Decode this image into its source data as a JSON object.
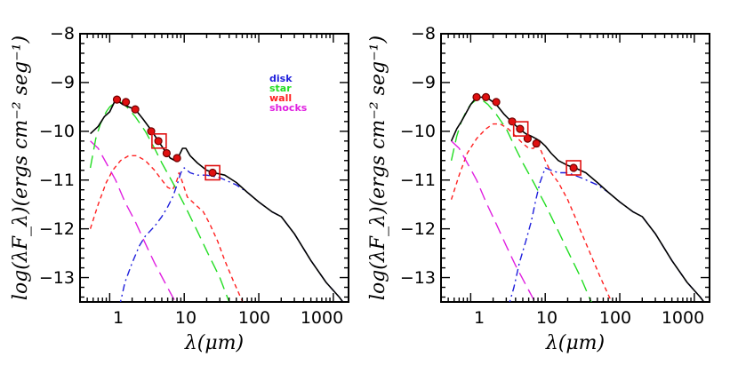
{
  "figure": {
    "ylabel": "log(λF_λ)(ergs cm⁻² seg⁻¹)",
    "xlabel": "λ(μm)"
  },
  "legend": [
    {
      "label": "disk",
      "color": "#1f1fdc"
    },
    {
      "label": "star",
      "color": "#22dd22"
    },
    {
      "label": "wall",
      "color": "#ff2020"
    },
    {
      "label": "shocks",
      "color": "#e020e0"
    }
  ],
  "chart_data": [
    {
      "type": "line",
      "panel": "left",
      "xscale": "log",
      "xlim": [
        0.4,
        1600
      ],
      "ylim": [
        -13.5,
        -8
      ],
      "xticks": [
        {
          "v": 1,
          "label": "1"
        },
        {
          "v": 10,
          "label": "10"
        },
        {
          "v": 100,
          "label": "100"
        },
        {
          "v": 1000,
          "label": "1000"
        }
      ],
      "yticks": [
        {
          "v": -8,
          "label": "−8"
        },
        {
          "v": -9,
          "label": "−9"
        },
        {
          "v": -10,
          "label": "−10"
        },
        {
          "v": -11,
          "label": "−11"
        },
        {
          "v": -12,
          "label": "−12"
        },
        {
          "v": -13,
          "label": "−13"
        }
      ],
      "xlabel": "λ(μm)",
      "ylabel": "log(λF_λ)(ergs cm⁻² seg⁻¹)",
      "legend_position": "top-right",
      "series": [
        {
          "name": "total",
          "color": "#000000",
          "style": "solid",
          "points": [
            [
              0.55,
              -10.05
            ],
            [
              0.7,
              -9.9
            ],
            [
              0.85,
              -9.7
            ],
            [
              1.0,
              -9.6
            ],
            [
              1.2,
              -9.35
            ],
            [
              1.5,
              -9.45
            ],
            [
              1.8,
              -9.5
            ],
            [
              2.2,
              -9.55
            ],
            [
              2.8,
              -9.75
            ],
            [
              3.5,
              -9.95
            ],
            [
              4.5,
              -10.2
            ],
            [
              5.5,
              -10.4
            ],
            [
              6.5,
              -10.55
            ],
            [
              7.5,
              -10.6
            ],
            [
              8.5,
              -10.5
            ],
            [
              9.5,
              -10.35
            ],
            [
              10.5,
              -10.35
            ],
            [
              12,
              -10.5
            ],
            [
              15,
              -10.65
            ],
            [
              20,
              -10.8
            ],
            [
              25,
              -10.85
            ],
            [
              35,
              -10.9
            ],
            [
              50,
              -11.05
            ],
            [
              70,
              -11.25
            ],
            [
              100,
              -11.45
            ],
            [
              150,
              -11.65
            ],
            [
              200,
              -11.75
            ],
            [
              300,
              -12.1
            ],
            [
              500,
              -12.65
            ],
            [
              800,
              -13.1
            ],
            [
              1200,
              -13.4
            ],
            [
              1500,
              -13.6
            ]
          ]
        },
        {
          "name": "disk",
          "color": "#1f1fdc",
          "style": "dash-dot",
          "points": [
            [
              1.35,
              -13.6
            ],
            [
              1.6,
              -13.1
            ],
            [
              2,
              -12.7
            ],
            [
              2.5,
              -12.35
            ],
            [
              3,
              -12.15
            ],
            [
              4,
              -11.95
            ],
            [
              5,
              -11.75
            ],
            [
              6,
              -11.55
            ],
            [
              7,
              -11.35
            ],
            [
              8,
              -11.1
            ],
            [
              9,
              -10.85
            ],
            [
              10,
              -10.75
            ],
            [
              12,
              -10.85
            ],
            [
              15,
              -10.9
            ],
            [
              20,
              -10.9
            ],
            [
              30,
              -10.95
            ],
            [
              50,
              -11.1
            ],
            [
              70,
              -11.25
            ],
            [
              100,
              -11.45
            ],
            [
              150,
              -11.65
            ],
            [
              200,
              -11.75
            ],
            [
              300,
              -12.1
            ],
            [
              500,
              -12.65
            ],
            [
              800,
              -13.1
            ],
            [
              1200,
              -13.4
            ],
            [
              1500,
              -13.6
            ]
          ]
        },
        {
          "name": "star",
          "color": "#22dd22",
          "style": "long-dash",
          "points": [
            [
              0.55,
              -10.75
            ],
            [
              0.65,
              -10.15
            ],
            [
              0.75,
              -9.85
            ],
            [
              0.9,
              -9.6
            ],
            [
              1.0,
              -9.5
            ],
            [
              1.2,
              -9.4
            ],
            [
              1.4,
              -9.4
            ],
            [
              1.7,
              -9.5
            ],
            [
              2.2,
              -9.7
            ],
            [
              3,
              -10.0
            ],
            [
              4,
              -10.35
            ],
            [
              5,
              -10.65
            ],
            [
              7,
              -11.05
            ],
            [
              10,
              -11.5
            ],
            [
              15,
              -12.05
            ],
            [
              20,
              -12.45
            ],
            [
              30,
              -13.0
            ],
            [
              40,
              -13.5
            ],
            [
              45,
              -13.6
            ]
          ]
        },
        {
          "name": "wall",
          "color": "#ff2020",
          "style": "short-dash",
          "points": [
            [
              0.55,
              -12.0
            ],
            [
              0.7,
              -11.5
            ],
            [
              0.9,
              -11.05
            ],
            [
              1.1,
              -10.8
            ],
            [
              1.4,
              -10.6
            ],
            [
              1.8,
              -10.5
            ],
            [
              2.3,
              -10.5
            ],
            [
              3,
              -10.6
            ],
            [
              4,
              -10.8
            ],
            [
              5,
              -11.0
            ],
            [
              6,
              -11.15
            ],
            [
              7,
              -11.2
            ],
            [
              8,
              -11.0
            ],
            [
              8.5,
              -10.85
            ],
            [
              9.5,
              -11.05
            ],
            [
              11,
              -11.35
            ],
            [
              14,
              -11.5
            ],
            [
              18,
              -11.65
            ],
            [
              22,
              -11.9
            ],
            [
              28,
              -12.25
            ],
            [
              35,
              -12.65
            ],
            [
              45,
              -13.05
            ],
            [
              55,
              -13.35
            ],
            [
              65,
              -13.6
            ]
          ]
        },
        {
          "name": "shocks",
          "color": "#e020e0",
          "style": "long-dash",
          "points": [
            [
              0.55,
              -10.2
            ],
            [
              0.7,
              -10.35
            ],
            [
              0.9,
              -10.65
            ],
            [
              1.2,
              -11.0
            ],
            [
              1.6,
              -11.45
            ],
            [
              2.2,
              -11.85
            ],
            [
              3,
              -12.3
            ],
            [
              4,
              -12.7
            ],
            [
              5.5,
              -13.1
            ],
            [
              7,
              -13.4
            ],
            [
              8.5,
              -13.6
            ]
          ]
        }
      ],
      "observed": [
        [
          1.25,
          -9.35
        ],
        [
          1.65,
          -9.4
        ],
        [
          2.2,
          -9.55
        ],
        [
          3.6,
          -10.0
        ],
        [
          4.5,
          -10.2
        ],
        [
          5.8,
          -10.45
        ],
        [
          8.0,
          -10.55
        ],
        [
          24,
          -10.85
        ]
      ],
      "marked": [
        [
          4.6,
          -10.2
        ],
        [
          24,
          -10.85
        ]
      ]
    },
    {
      "type": "line",
      "panel": "right",
      "xscale": "log",
      "xlim": [
        0.4,
        1600
      ],
      "ylim": [
        -13.5,
        -8
      ],
      "xticks": [
        {
          "v": 1,
          "label": "1"
        },
        {
          "v": 10,
          "label": "10"
        },
        {
          "v": 100,
          "label": "100"
        },
        {
          "v": 1000,
          "label": "1000"
        }
      ],
      "yticks": [
        {
          "v": -8,
          "label": "−8"
        },
        {
          "v": -9,
          "label": "−9"
        },
        {
          "v": -10,
          "label": "−10"
        },
        {
          "v": -11,
          "label": "−11"
        },
        {
          "v": -12,
          "label": "−12"
        },
        {
          "v": -13,
          "label": "−13"
        }
      ],
      "xlabel": "λ(μm)",
      "ylabel": "log(λF_λ)(ergs cm⁻² seg⁻¹)",
      "series": [
        {
          "name": "total",
          "color": "#000000",
          "style": "solid",
          "points": [
            [
              0.55,
              -10.2
            ],
            [
              0.65,
              -9.95
            ],
            [
              0.75,
              -9.8
            ],
            [
              0.85,
              -9.65
            ],
            [
              1.0,
              -9.45
            ],
            [
              1.2,
              -9.3
            ],
            [
              1.5,
              -9.3
            ],
            [
              1.8,
              -9.35
            ],
            [
              2.2,
              -9.45
            ],
            [
              2.8,
              -9.65
            ],
            [
              3.5,
              -9.8
            ],
            [
              4.5,
              -9.95
            ],
            [
              5.5,
              -10.05
            ],
            [
              6.5,
              -10.1
            ],
            [
              7.5,
              -10.15
            ],
            [
              8.5,
              -10.2
            ],
            [
              10,
              -10.3
            ],
            [
              12,
              -10.45
            ],
            [
              15,
              -10.6
            ],
            [
              20,
              -10.7
            ],
            [
              25,
              -10.75
            ],
            [
              35,
              -10.85
            ],
            [
              50,
              -11.05
            ],
            [
              70,
              -11.25
            ],
            [
              100,
              -11.45
            ],
            [
              150,
              -11.65
            ],
            [
              200,
              -11.75
            ],
            [
              300,
              -12.1
            ],
            [
              500,
              -12.65
            ],
            [
              800,
              -13.1
            ],
            [
              1200,
              -13.4
            ],
            [
              1500,
              -13.6
            ]
          ]
        },
        {
          "name": "disk",
          "color": "#1f1fdc",
          "style": "dash-dot",
          "points": [
            [
              3.2,
              -13.6
            ],
            [
              3.8,
              -13.2
            ],
            [
              4.5,
              -12.7
            ],
            [
              5.5,
              -12.25
            ],
            [
              6.5,
              -11.85
            ],
            [
              7.5,
              -11.4
            ],
            [
              8.5,
              -11.05
            ],
            [
              10,
              -10.75
            ],
            [
              12,
              -10.8
            ],
            [
              15,
              -10.85
            ],
            [
              20,
              -10.85
            ],
            [
              30,
              -10.95
            ],
            [
              50,
              -11.1
            ],
            [
              70,
              -11.25
            ],
            [
              100,
              -11.45
            ],
            [
              150,
              -11.65
            ],
            [
              200,
              -11.75
            ],
            [
              300,
              -12.1
            ],
            [
              500,
              -12.65
            ],
            [
              800,
              -13.1
            ],
            [
              1200,
              -13.4
            ],
            [
              1500,
              -13.6
            ]
          ]
        },
        {
          "name": "star",
          "color": "#22dd22",
          "style": "long-dash",
          "points": [
            [
              0.55,
              -10.6
            ],
            [
              0.65,
              -10.1
            ],
            [
              0.75,
              -9.8
            ],
            [
              0.9,
              -9.55
            ],
            [
              1.0,
              -9.45
            ],
            [
              1.2,
              -9.35
            ],
            [
              1.4,
              -9.35
            ],
            [
              1.7,
              -9.45
            ],
            [
              2.2,
              -9.65
            ],
            [
              3,
              -9.95
            ],
            [
              4,
              -10.35
            ],
            [
              5,
              -10.65
            ],
            [
              7,
              -11.05
            ],
            [
              10,
              -11.5
            ],
            [
              15,
              -12.05
            ],
            [
              20,
              -12.45
            ],
            [
              30,
              -13.0
            ],
            [
              40,
              -13.45
            ],
            [
              45,
              -13.6
            ]
          ]
        },
        {
          "name": "wall",
          "color": "#ff2020",
          "style": "short-dash",
          "points": [
            [
              0.55,
              -11.4
            ],
            [
              0.7,
              -10.9
            ],
            [
              0.9,
              -10.45
            ],
            [
              1.2,
              -10.15
            ],
            [
              1.6,
              -9.95
            ],
            [
              2.0,
              -9.85
            ],
            [
              2.5,
              -9.85
            ],
            [
              3.2,
              -9.95
            ],
            [
              4,
              -10.1
            ],
            [
              5,
              -10.25
            ],
            [
              6,
              -10.35
            ],
            [
              7,
              -10.35
            ],
            [
              7.5,
              -10.25
            ],
            [
              8.5,
              -10.35
            ],
            [
              10,
              -10.6
            ],
            [
              12,
              -10.85
            ],
            [
              15,
              -11.05
            ],
            [
              20,
              -11.4
            ],
            [
              25,
              -11.75
            ],
            [
              30,
              -12.05
            ],
            [
              40,
              -12.5
            ],
            [
              55,
              -13.0
            ],
            [
              75,
              -13.45
            ],
            [
              85,
              -13.6
            ]
          ]
        },
        {
          "name": "shocks",
          "color": "#e020e0",
          "style": "long-dash",
          "points": [
            [
              0.55,
              -10.2
            ],
            [
              0.7,
              -10.35
            ],
            [
              0.9,
              -10.65
            ],
            [
              1.2,
              -11.0
            ],
            [
              1.6,
              -11.45
            ],
            [
              2.2,
              -11.9
            ],
            [
              3,
              -12.35
            ],
            [
              4,
              -12.75
            ],
            [
              5.5,
              -13.15
            ],
            [
              7,
              -13.45
            ],
            [
              8,
              -13.6
            ]
          ]
        }
      ],
      "observed": [
        [
          1.2,
          -9.3
        ],
        [
          1.6,
          -9.3
        ],
        [
          2.2,
          -9.4
        ],
        [
          3.6,
          -9.8
        ],
        [
          4.6,
          -9.95
        ],
        [
          5.8,
          -10.15
        ],
        [
          7.6,
          -10.25
        ],
        [
          24,
          -10.75
        ]
      ],
      "marked": [
        [
          4.7,
          -9.95
        ],
        [
          24,
          -10.75
        ]
      ]
    }
  ]
}
